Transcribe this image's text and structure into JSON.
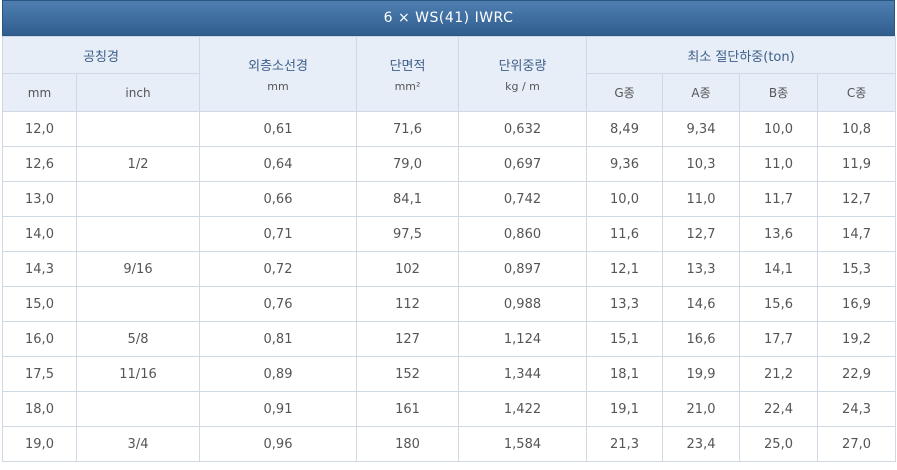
{
  "title": "6 × WS(41) IWRC",
  "header": {
    "nominal_diameter": "공칭경",
    "mm": "mm",
    "inch": "inch",
    "outer_wire_dia": "외층소선경",
    "outer_wire_unit": "mm",
    "area": "단면적",
    "area_unit": "mm²",
    "unit_weight": "단위중량",
    "unit_weight_unit": "kg / m",
    "min_break_load": "최소 절단하중(ton)",
    "grade_g": "G종",
    "grade_a": "A종",
    "grade_b": "B종",
    "grade_c": "C종"
  },
  "rows": [
    {
      "mm": "12,0",
      "inch": "",
      "wire": "0,61",
      "area": "71,6",
      "weight": "0,632",
      "g": "8,49",
      "a": "9,34",
      "b": "10,0",
      "c": "10,8"
    },
    {
      "mm": "12,6",
      "inch": "1/2",
      "wire": "0,64",
      "area": "79,0",
      "weight": "0,697",
      "g": "9,36",
      "a": "10,3",
      "b": "11,0",
      "c": "11,9"
    },
    {
      "mm": "13,0",
      "inch": "",
      "wire": "0,66",
      "area": "84,1",
      "weight": "0,742",
      "g": "10,0",
      "a": "11,0",
      "b": "11,7",
      "c": "12,7"
    },
    {
      "mm": "14,0",
      "inch": "",
      "wire": "0,71",
      "area": "97,5",
      "weight": "0,860",
      "g": "11,6",
      "a": "12,7",
      "b": "13,6",
      "c": "14,7"
    },
    {
      "mm": "14,3",
      "inch": "9/16",
      "wire": "0,72",
      "area": "102",
      "weight": "0,897",
      "g": "12,1",
      "a": "13,3",
      "b": "14,1",
      "c": "15,3"
    },
    {
      "mm": "15,0",
      "inch": "",
      "wire": "0,76",
      "area": "112",
      "weight": "0,988",
      "g": "13,3",
      "a": "14,6",
      "b": "15,6",
      "c": "16,9"
    },
    {
      "mm": "16,0",
      "inch": "5/8",
      "wire": "0,81",
      "area": "127",
      "weight": "1,124",
      "g": "15,1",
      "a": "16,6",
      "b": "17,7",
      "c": "19,2"
    },
    {
      "mm": "17,5",
      "inch": "11/16",
      "wire": "0,89",
      "area": "152",
      "weight": "1,344",
      "g": "18,1",
      "a": "19,9",
      "b": "21,2",
      "c": "22,9"
    },
    {
      "mm": "18,0",
      "inch": "",
      "wire": "0,91",
      "area": "161",
      "weight": "1,422",
      "g": "19,1",
      "a": "21,0",
      "b": "22,4",
      "c": "24,3"
    },
    {
      "mm": "19,0",
      "inch": "3/4",
      "wire": "0,96",
      "area": "180",
      "weight": "1,584",
      "g": "21,3",
      "a": "23,4",
      "b": "25,0",
      "c": "27,0"
    }
  ]
}
